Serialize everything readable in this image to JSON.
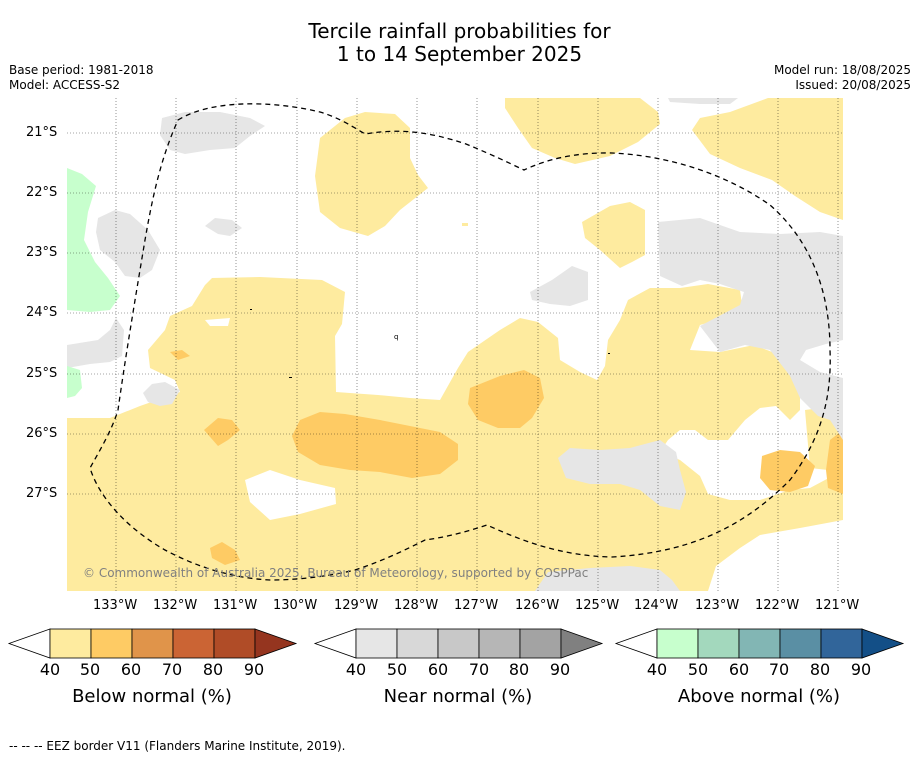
{
  "title_line1": "Tercile rainfall probabilities for",
  "title_line2": "1 to 14 September 2025",
  "base_period": "Base period: 1981-2018",
  "model": "Model: ACCESS-S2",
  "model_run": "Model run: 18/08/2025",
  "issued": "Issued: 20/08/2025",
  "copyright": "© Commonwealth of Australia 2025, Bureau of Meteorology, supported by COSPPac",
  "footnote": "--  --  -- EEZ border V11 (Flanders Marine Institute, 2019).",
  "lat_labels": [
    "21°S",
    "22°S",
    "23°S",
    "24°S",
    "25°S",
    "26°S",
    "27°S"
  ],
  "lon_labels": [
    "133°W",
    "132°W",
    "131°W",
    "130°W",
    "129°W",
    "128°W",
    "127°W",
    "126°W",
    "125°W",
    "124°W",
    "123°W",
    "122°W",
    "121°W"
  ],
  "colorbars": {
    "below": {
      "title": "Below normal (%)",
      "ticks": [
        "40",
        "50",
        "60",
        "70",
        "80",
        "90"
      ],
      "colors": [
        "#ffffff",
        "#feeb9f",
        "#fecb64",
        "#e0944a",
        "#cb6434",
        "#b04c27",
        "#95351f"
      ]
    },
    "near": {
      "title": "Near normal (%)",
      "ticks": [
        "40",
        "50",
        "60",
        "70",
        "80",
        "90"
      ],
      "colors": [
        "#ffffff",
        "#e6e6e6",
        "#d8d8d8",
        "#c8c8c8",
        "#b6b6b6",
        "#a3a3a3",
        "#808080"
      ]
    },
    "above": {
      "title": "Above normal (%)",
      "ticks": [
        "40",
        "50",
        "60",
        "70",
        "80",
        "90"
      ],
      "colors": [
        "#ffffff",
        "#c7ffcd",
        "#a3d8bd",
        "#82b6b4",
        "#5a8fa4",
        "#31659a",
        "#134f87"
      ]
    }
  },
  "map_colors": {
    "below_40_50": "#feeb9f",
    "below_50_60": "#fecb64",
    "near_40_50": "#e6e6e6",
    "above_40_50": "#c7ffcd"
  }
}
